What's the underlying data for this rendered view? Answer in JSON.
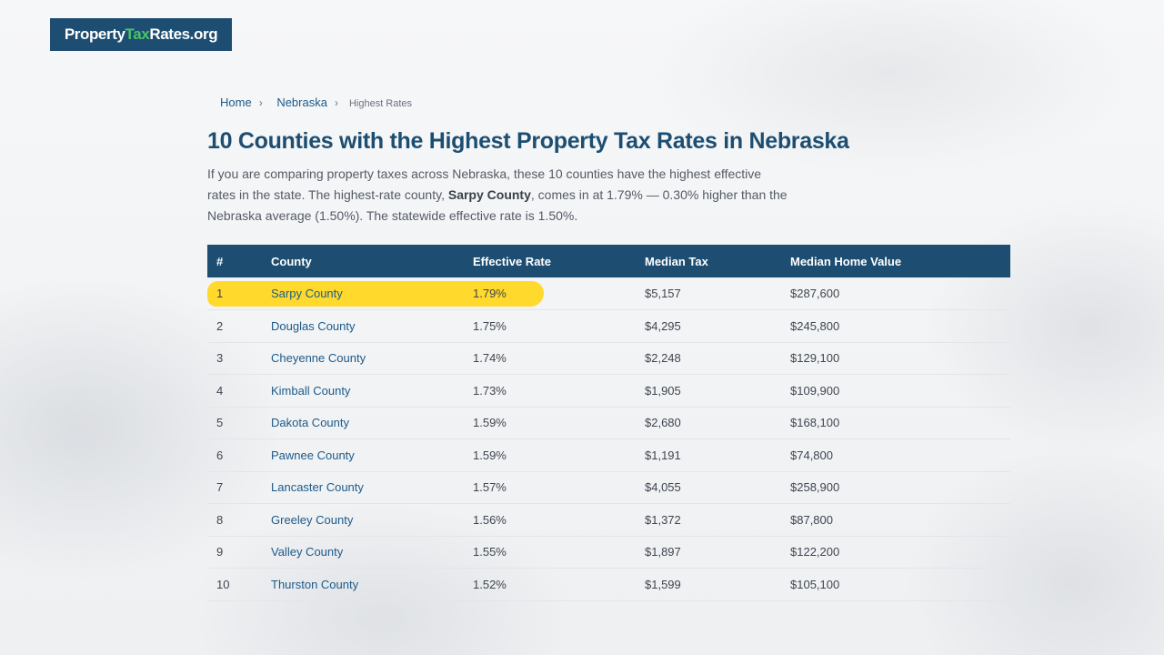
{
  "logo": {
    "part1": "Property",
    "part2": "Tax",
    "part3": "Rates.org"
  },
  "breadcrumb": {
    "home": "Home",
    "sep": "›",
    "state": "Nebraska",
    "current": "Highest Rates"
  },
  "page_title": "10 Counties with the Highest Property Tax Rates in Nebraska",
  "intro": {
    "part1": "If you are comparing property taxes across Nebraska, these 10 counties have the highest effective rates in the state. The highest-rate county, ",
    "bold": "Sarpy County",
    "part2": ", comes in at 1.79% — 0.30% higher than the Nebraska average (1.50%). The statewide effective rate is 1.50%."
  },
  "table": {
    "headers": [
      "#",
      "County",
      "Effective Rate",
      "Median Tax",
      "Median Home Value"
    ],
    "rows": [
      {
        "rank": "1",
        "county": "Sarpy County",
        "rate": "1.79%",
        "tax": "$5,157",
        "value": "$287,600"
      },
      {
        "rank": "2",
        "county": "Douglas County",
        "rate": "1.75%",
        "tax": "$4,295",
        "value": "$245,800"
      },
      {
        "rank": "3",
        "county": "Cheyenne County",
        "rate": "1.74%",
        "tax": "$2,248",
        "value": "$129,100"
      },
      {
        "rank": "4",
        "county": "Kimball County",
        "rate": "1.73%",
        "tax": "$1,905",
        "value": "$109,900"
      },
      {
        "rank": "5",
        "county": "Dakota County",
        "rate": "1.59%",
        "tax": "$2,680",
        "value": "$168,100"
      },
      {
        "rank": "6",
        "county": "Pawnee County",
        "rate": "1.59%",
        "tax": "$1,191",
        "value": "$74,800"
      },
      {
        "rank": "7",
        "county": "Lancaster County",
        "rate": "1.57%",
        "tax": "$4,055",
        "value": "$258,900"
      },
      {
        "rank": "8",
        "county": "Greeley County",
        "rate": "1.56%",
        "tax": "$1,372",
        "value": "$87,800"
      },
      {
        "rank": "9",
        "county": "Valley County",
        "rate": "1.55%",
        "tax": "$1,897",
        "value": "$122,200"
      },
      {
        "rank": "10",
        "county": "Thurston County",
        "rate": "1.52%",
        "tax": "$1,599",
        "value": "$105,100"
      }
    ]
  },
  "colors": {
    "brand": "#1d4e72",
    "accent": "#4cc26a",
    "highlight": "#ffd92b",
    "link": "#1d5a8a"
  }
}
